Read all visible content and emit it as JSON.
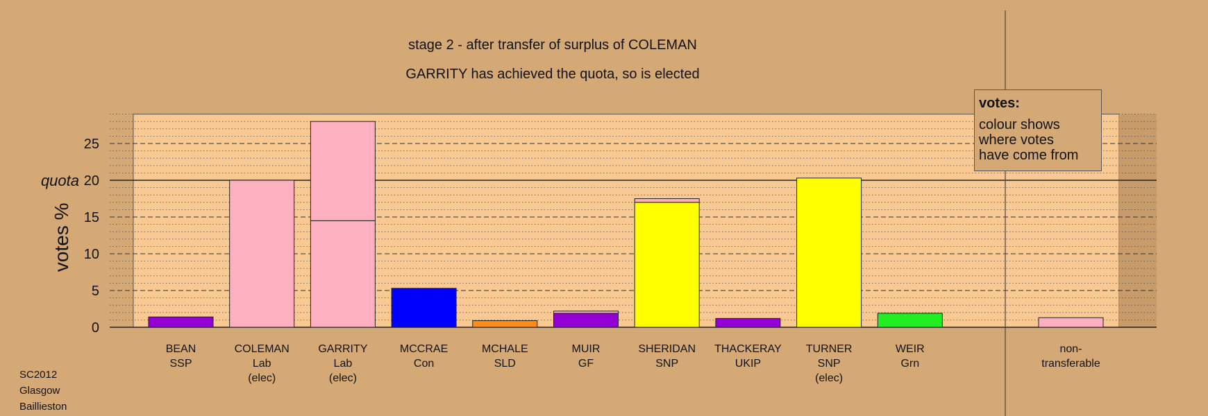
{
  "title_lines": [
    "stage 2 - after transfer of surplus of COLEMAN",
    "GARRITY has achieved the quota, so is elected"
  ],
  "corner_text": [
    "SC2012",
    "Glasgow",
    "Baillieston"
  ],
  "legend": {
    "title": "votes:",
    "body": "colour shows\nwhere votes\nhave come from"
  },
  "colors": {
    "background": "#d4a976",
    "plot_area": "#f8c992",
    "quota_line": "#222222"
  },
  "chart_data": {
    "type": "bar",
    "ylabel": "votes %",
    "ylim": [
      0,
      29
    ],
    "yticks": [
      0,
      5,
      10,
      15,
      20,
      25
    ],
    "quota": {
      "label": "quota",
      "value": 20
    },
    "grid": true,
    "candidates": [
      {
        "name": "BEAN",
        "party": "SSP",
        "note": "",
        "segments": [
          {
            "value": 1.4,
            "color": "#9400d3"
          }
        ]
      },
      {
        "name": "COLEMAN",
        "party": "Lab",
        "note": "(elec)",
        "segments": [
          {
            "value": 20.0,
            "color": "#ffb0c0"
          }
        ]
      },
      {
        "name": "GARRITY",
        "party": "Lab",
        "note": "(elec)",
        "segments": [
          {
            "value": 14.5,
            "color": "#ffb0c0"
          },
          {
            "value": 13.5,
            "color": "#ffb0c0"
          }
        ]
      },
      {
        "name": "MCCRAE",
        "party": "Con",
        "note": "",
        "segments": [
          {
            "value": 5.3,
            "color": "#0000ff"
          }
        ]
      },
      {
        "name": "MCHALE",
        "party": "SLD",
        "note": "",
        "segments": [
          {
            "value": 0.9,
            "color": "#ff8c1a"
          }
        ]
      },
      {
        "name": "MUIR",
        "party": "GF",
        "note": "",
        "segments": [
          {
            "value": 1.9,
            "color": "#9400d3"
          },
          {
            "value": 0.3,
            "color": "#ffb0c0"
          }
        ]
      },
      {
        "name": "SHERIDAN",
        "party": "SNP",
        "note": "",
        "segments": [
          {
            "value": 17.0,
            "color": "#ffff00"
          },
          {
            "value": 0.5,
            "color": "#ffb0c0"
          }
        ]
      },
      {
        "name": "THACKERAY",
        "party": "UKIP",
        "note": "",
        "segments": [
          {
            "value": 1.2,
            "color": "#9400d3"
          }
        ]
      },
      {
        "name": "TURNER",
        "party": "SNP",
        "note": "(elec)",
        "segments": [
          {
            "value": 20.3,
            "color": "#ffff00"
          }
        ]
      },
      {
        "name": "WEIR",
        "party": "Grn",
        "note": "",
        "segments": [
          {
            "value": 1.9,
            "color": "#22ee22"
          }
        ]
      }
    ],
    "nontransferable": {
      "label_lines": [
        "non-",
        "transferable"
      ],
      "value": 1.3,
      "color": "#ffb0c0"
    }
  }
}
